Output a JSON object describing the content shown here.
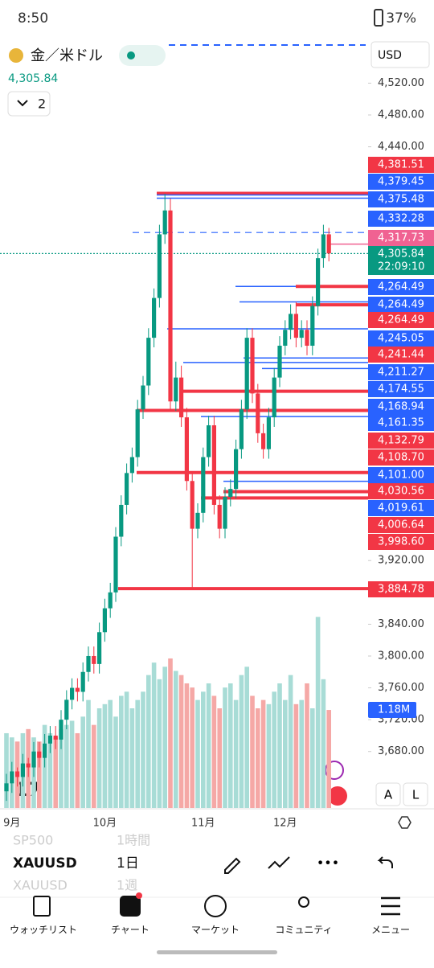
{
  "status_bar": {
    "time": "8:50",
    "battery": "37%"
  },
  "header": {
    "symbol": "金／米ドル",
    "price": "4,305.84",
    "intervals_count": "2",
    "currency": "USD"
  },
  "chart_data": {
    "type": "candlestick",
    "ylim": [
      3609,
      4576
    ],
    "yticks": [
      {
        "value": 4520,
        "label": "4,520.00"
      },
      {
        "value": 4480,
        "label": "4,480.00"
      },
      {
        "value": 4440,
        "label": "4,440.00"
      },
      {
        "value": 3920,
        "label": "3,920.00"
      },
      {
        "value": 3840,
        "label": "3,840.00"
      },
      {
        "value": 3800,
        "label": "3,800.00"
      },
      {
        "value": 3760,
        "label": "3,760.00"
      },
      {
        "value": 3720,
        "label": "3,720.00"
      },
      {
        "value": 3680,
        "label": "3,680.00"
      }
    ],
    "x_labels": [
      "9月",
      "10月",
      "11月",
      "12月"
    ],
    "up_color": "#089981",
    "down_color": "#f23645",
    "open": [
      3630,
      3640,
      3655,
      3648,
      3665,
      3660,
      3680,
      3672,
      3690,
      3700,
      3695,
      3720,
      3745,
      3760,
      3755,
      3780,
      3800,
      3790,
      3830,
      3860,
      3880,
      3950,
      3990,
      4030,
      4050,
      4110,
      4140,
      4200,
      4250,
      4330,
      4360,
      4120,
      4150,
      4100,
      4020,
      3960,
      3980,
      4050,
      4090,
      3990,
      3960,
      4000,
      4010,
      4060,
      4110,
      4200,
      4130,
      4080,
      4060,
      4100,
      4150,
      4190,
      4210,
      4230,
      4200,
      4210,
      4190,
      4240,
      4300,
      4330
    ],
    "high": [
      3652,
      3667,
      3660,
      3677,
      3672,
      3692,
      3692,
      3702,
      3712,
      3712,
      3732,
      3757,
      3772,
      3772,
      3792,
      3812,
      3812,
      3842,
      3872,
      3892,
      3962,
      4002,
      4042,
      4062,
      4122,
      4152,
      4212,
      4262,
      4342,
      4381,
      4375,
      4170,
      4165,
      4112,
      4032,
      3992,
      4062,
      4102,
      4102,
      4002,
      4012,
      4022,
      4072,
      4122,
      4212,
      4212,
      4142,
      4092,
      4112,
      4162,
      4202,
      4222,
      4242,
      4245,
      4222,
      4222,
      4252,
      4312,
      4342,
      4338
    ],
    "low": [
      3618,
      3628,
      3636,
      3636,
      3648,
      3648,
      3660,
      3660,
      3678,
      3683,
      3683,
      3708,
      3733,
      3743,
      3743,
      3768,
      3778,
      3778,
      3818,
      3848,
      3868,
      3938,
      3978,
      4018,
      4038,
      4098,
      4128,
      4188,
      4238,
      4318,
      4108,
      4108,
      4088,
      4008,
      3886,
      3948,
      3968,
      4038,
      3978,
      3948,
      3948,
      3988,
      3998,
      4048,
      4098,
      4118,
      4068,
      4048,
      4048,
      4088,
      4138,
      4178,
      4198,
      4188,
      4188,
      4178,
      4178,
      4228,
      4288,
      4296
    ],
    "close": [
      3640,
      3655,
      3648,
      3665,
      3660,
      3680,
      3672,
      3690,
      3700,
      3695,
      3720,
      3745,
      3760,
      3755,
      3780,
      3800,
      3790,
      3830,
      3860,
      3880,
      3950,
      3990,
      4030,
      4050,
      4110,
      4140,
      4200,
      4250,
      4330,
      4360,
      4120,
      4150,
      4100,
      4020,
      3960,
      3980,
      4050,
      4090,
      3990,
      3960,
      4000,
      4010,
      4060,
      4110,
      4200,
      4130,
      4080,
      4060,
      4100,
      4150,
      4190,
      4210,
      4230,
      4200,
      4210,
      4190,
      4240,
      4300,
      4330,
      4306
    ],
    "volume": {
      "values": [
        0.9,
        0.85,
        0.8,
        0.9,
        0.95,
        0.85,
        0.8,
        1.0,
        0.9,
        0.85,
        0.95,
        1.0,
        1.05,
        0.9,
        1.1,
        1.3,
        1.0,
        1.2,
        1.25,
        1.3,
        1.1,
        1.35,
        1.4,
        1.2,
        1.3,
        1.4,
        1.6,
        1.75,
        1.55,
        1.7,
        1.8,
        1.65,
        1.6,
        1.5,
        1.45,
        1.3,
        1.4,
        1.5,
        1.35,
        1.2,
        1.45,
        1.5,
        1.3,
        1.6,
        1.7,
        1.35,
        1.2,
        1.3,
        1.25,
        1.4,
        1.5,
        1.3,
        1.6,
        1.25,
        1.3,
        1.5,
        1.2,
        2.3,
        1.55,
        1.18
      ],
      "lim": [
        0,
        9.26
      ],
      "last_label": "1.18M",
      "up_color": "#a8dcd6",
      "down_color": "#f5a8a6"
    },
    "levels": [
      {
        "value": 4381.51,
        "label": "4,381.51",
        "color": "#f23645"
      },
      {
        "value": 4379.45,
        "label": "4,379.45",
        "color": "#2962ff"
      },
      {
        "value": 4375.48,
        "label": "4,375.48",
        "color": "#2962ff"
      },
      {
        "value": 4332.28,
        "label": "4,332.28",
        "color": "#2962ff"
      },
      {
        "value": 4317.73,
        "label": "4,317.73",
        "color": "#f06292"
      },
      {
        "value": 4305.84,
        "label": "4,305.84",
        "color": "#089981",
        "countdown": "22:09:10"
      },
      {
        "value": 4264.49,
        "label": "4,264.49",
        "color": "#2962ff"
      },
      {
        "value": 4264.49,
        "label": "4,264.49",
        "color": "#2962ff"
      },
      {
        "value": 4264.49,
        "label": "4,264.49",
        "color": "#f23645"
      },
      {
        "value": 4245.05,
        "label": "4,245.05",
        "color": "#2962ff"
      },
      {
        "value": 4241.44,
        "label": "4,241.44",
        "color": "#f23645"
      },
      {
        "value": 4211.27,
        "label": "4,211.27",
        "color": "#2962ff"
      },
      {
        "value": 4174.55,
        "label": "4,174.55",
        "color": "#2962ff"
      },
      {
        "value": 4168.94,
        "label": "4,168.94",
        "color": "#2962ff"
      },
      {
        "value": 4161.35,
        "label": "4,161.35",
        "color": "#2962ff"
      },
      {
        "value": 4132.79,
        "label": "4,132.79",
        "color": "#f23645"
      },
      {
        "value": 4108.7,
        "label": "4,108.70",
        "color": "#f23645"
      },
      {
        "value": 4101.0,
        "label": "4,101.00",
        "color": "#2962ff"
      },
      {
        "value": 4030.56,
        "label": "4,030.56",
        "color": "#f23645"
      },
      {
        "value": 4019.61,
        "label": "4,019.61",
        "color": "#2962ff"
      },
      {
        "value": 4006.64,
        "label": "4,006.64",
        "color": "#f23645"
      },
      {
        "value": 3998.6,
        "label": "3,998.60",
        "color": "#f23645"
      },
      {
        "value": 3884.78,
        "label": "3,884.78",
        "color": "#f23645"
      }
    ]
  },
  "toolbar": {
    "prev_symbol": "SP500",
    "prev_interval": "1時間",
    "symbol": "XAUUSD",
    "interval": "1日",
    "next_symbol": "XAUUSD",
    "next_interval": "1週"
  },
  "scale_buttons": [
    "A",
    "L"
  ],
  "nav": [
    "ウォッチリスト",
    "チャート",
    "マーケット",
    "コミュニティ",
    "メニュー"
  ]
}
